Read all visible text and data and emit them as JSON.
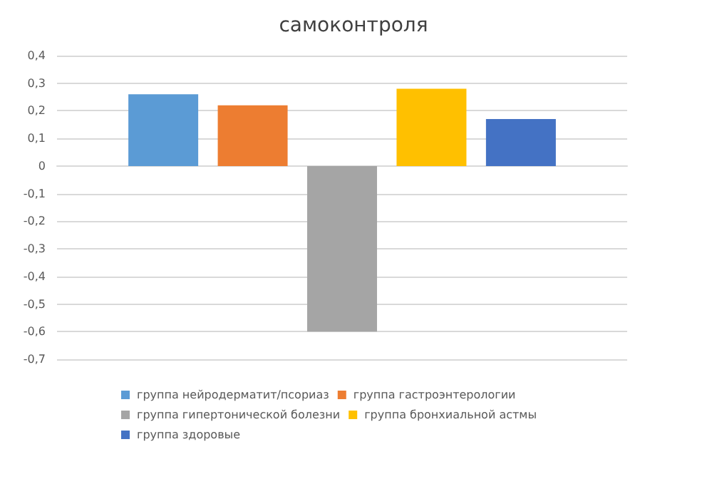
{
  "chart_data": {
    "type": "bar",
    "title": "самоконтроля",
    "categories": [
      null
    ],
    "series": [
      {
        "name": "группа нейродерматит/псориаз",
        "color": "#5b9bd5",
        "values": [
          0.26
        ]
      },
      {
        "name": "группа гастроэнтерологии",
        "color": "#ed7d31",
        "values": [
          0.22
        ]
      },
      {
        "name": "группа гипертонической болезни",
        "color": "#a5a5a5",
        "values": [
          -0.6
        ]
      },
      {
        "name": "группа бронхиальной астмы",
        "color": "#ffc000",
        "values": [
          0.28
        ]
      },
      {
        "name": "группа здоровые",
        "color": "#4472c4",
        "values": [
          0.17
        ]
      }
    ],
    "ylim": [
      -0.7,
      0.4
    ],
    "yticks": [
      {
        "value": 0.4,
        "label": "0,4"
      },
      {
        "value": 0.3,
        "label": "0,3"
      },
      {
        "value": 0.2,
        "label": "0,2"
      },
      {
        "value": 0.1,
        "label": "0,1"
      },
      {
        "value": 0,
        "label": "0"
      },
      {
        "value": -0.1,
        "label": "-0,1"
      },
      {
        "value": -0.2,
        "label": "-0,2"
      },
      {
        "value": -0.3,
        "label": "-0,3"
      },
      {
        "value": -0.4,
        "label": "-0,4"
      },
      {
        "value": -0.5,
        "label": "-0,5"
      },
      {
        "value": -0.6,
        "label": "-0,6"
      },
      {
        "value": -0.7,
        "label": "-0,7"
      }
    ],
    "grid": "y",
    "legend": "bottom"
  }
}
